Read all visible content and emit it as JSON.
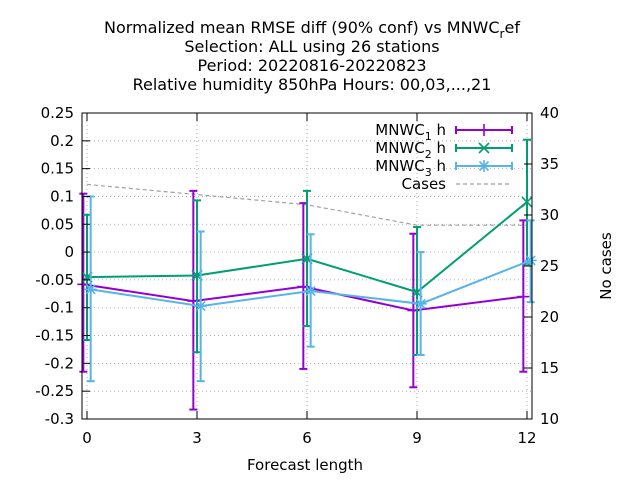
{
  "chart_data": {
    "type": "line",
    "title_lines": [
      "Normalized mean RMSE diff (90% conf) vs MNWC_ref",
      "Selection: ALL using    26 stations",
      "Period: 20220816-20220823",
      "Relative humidity 850hPa    Hours:  00,03,...,21"
    ],
    "xlabel": "Forecast length",
    "ylabel": "",
    "y2label": "No cases",
    "x": [
      0,
      3,
      6,
      9,
      12
    ],
    "xlim": [
      -0.2,
      12.1
    ],
    "ylim": [
      -0.3,
      0.25
    ],
    "y2lim": [
      10,
      40
    ],
    "xticks": [
      "0",
      "3",
      "6",
      "9",
      "12"
    ],
    "yticks": [
      "0.25",
      "0.2",
      "0.15",
      "0.1",
      "0.05",
      "0",
      "-0.05",
      "-0.1",
      "-0.15",
      "-0.2",
      "-0.25",
      "-0.3"
    ],
    "y2ticks": [
      "40",
      "35",
      "30",
      "25",
      "20",
      "15",
      "10"
    ],
    "grid": true,
    "legend_position": "top-right",
    "series": [
      {
        "name": "MNWC1h",
        "color": "#9400d3",
        "marker": "plus",
        "offset": -0.1,
        "values": [
          -0.058,
          -0.088,
          -0.062,
          -0.105,
          -0.08
        ],
        "err_low": [
          -0.215,
          -0.283,
          -0.21,
          -0.243,
          -0.215
        ],
        "err_high": [
          0.105,
          0.11,
          0.088,
          0.033,
          0.057
        ]
      },
      {
        "name": "MNWC2h",
        "color": "#009e73",
        "marker": "x",
        "offset": 0.0,
        "values": [
          -0.045,
          -0.042,
          -0.012,
          -0.072,
          0.09
        ],
        "err_low": [
          -0.158,
          -0.18,
          -0.133,
          -0.185,
          -0.022
        ],
        "err_high": [
          0.067,
          0.093,
          0.11,
          0.045,
          0.202
        ]
      },
      {
        "name": "MNWC3h",
        "color": "#56b4e9",
        "marker": "star",
        "offset": 0.1,
        "values": [
          -0.067,
          -0.097,
          -0.07,
          -0.093,
          -0.015
        ],
        "err_low": [
          -0.232,
          -0.232,
          -0.17,
          -0.185,
          -0.09
        ],
        "err_high": [
          0.1,
          0.037,
          0.032,
          0.0,
          0.057
        ]
      }
    ],
    "cases": {
      "name": "Cases",
      "color": "#a0a0a0",
      "values": [
        33,
        32,
        31,
        29,
        29
      ]
    }
  }
}
